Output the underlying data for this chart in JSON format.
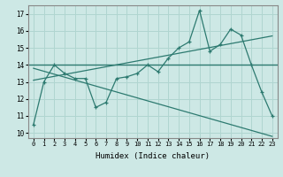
{
  "xlabel": "Humidex (Indice chaleur)",
  "background_color": "#cde8e5",
  "grid_color": "#b0d5d0",
  "line_color": "#2d7a70",
  "xlim": [
    -0.5,
    23.5
  ],
  "ylim": [
    9.7,
    17.5
  ],
  "yticks": [
    10,
    11,
    12,
    13,
    14,
    15,
    16,
    17
  ],
  "xticks": [
    0,
    1,
    2,
    3,
    4,
    5,
    6,
    7,
    8,
    9,
    10,
    11,
    12,
    13,
    14,
    15,
    16,
    17,
    18,
    19,
    20,
    21,
    22,
    23
  ],
  "line1_x": [
    0,
    1,
    2,
    3,
    4,
    5,
    6,
    7,
    8,
    9,
    10,
    11,
    12,
    13,
    14,
    15,
    16,
    17,
    18,
    19,
    20,
    21,
    22,
    23
  ],
  "line1_y": [
    10.5,
    13.0,
    14.0,
    13.5,
    13.2,
    13.2,
    11.5,
    11.8,
    13.2,
    13.3,
    13.5,
    14.0,
    13.6,
    14.4,
    15.0,
    15.35,
    17.2,
    14.8,
    15.2,
    16.1,
    15.75,
    14.0,
    12.4,
    11.0
  ],
  "line2_y": 14.0,
  "line3_x0": 0,
  "line3_x1": 23,
  "line3_y0": 13.1,
  "line3_y1": 15.7,
  "line4_x0": 0,
  "line4_x1": 23,
  "line4_y0": 13.8,
  "line4_y1": 9.8
}
